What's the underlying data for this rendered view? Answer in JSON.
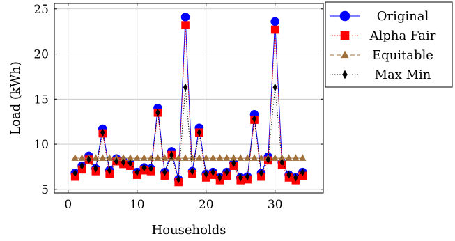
{
  "chart_data": {
    "type": "line",
    "title": "",
    "xlabel": "Households",
    "ylabel": "Load (kWh)",
    "xlim": [
      -2,
      37
    ],
    "ylim": [
      4.6,
      25.6
    ],
    "xticks": [
      0,
      10,
      20,
      30
    ],
    "yticks": [
      5,
      10,
      15,
      20,
      25
    ],
    "grid": true,
    "legend_position": "outside-top-right",
    "x": [
      1,
      2,
      3,
      4,
      5,
      6,
      7,
      8,
      9,
      10,
      11,
      12,
      13,
      14,
      15,
      16,
      17,
      18,
      19,
      20,
      21,
      22,
      23,
      24,
      25,
      26,
      27,
      28,
      29,
      30,
      31,
      32,
      33,
      34
    ],
    "series": [
      {
        "name": "Original",
        "color": "#0000ff",
        "marker": "circle",
        "line": "solid",
        "values": [
          6.8,
          7.6,
          8.7,
          7.3,
          11.7,
          7.1,
          8.4,
          8.1,
          7.9,
          6.9,
          7.4,
          7.3,
          14.0,
          6.9,
          9.2,
          6.1,
          24.1,
          7.0,
          11.8,
          6.7,
          6.9,
          6.3,
          6.9,
          7.9,
          6.3,
          6.4,
          13.3,
          6.8,
          8.6,
          23.6,
          8.0,
          6.6,
          6.3,
          6.9
        ]
      },
      {
        "name": "Alpha Fair",
        "color": "#ff0000",
        "marker": "square",
        "line": "dotted",
        "values": [
          6.4,
          7.2,
          8.3,
          7.0,
          11.2,
          6.7,
          8.1,
          7.8,
          7.6,
          6.6,
          7.1,
          7.0,
          13.5,
          6.5,
          8.8,
          5.8,
          23.2,
          6.7,
          11.3,
          6.3,
          6.6,
          6.0,
          6.5,
          7.6,
          6.0,
          6.1,
          12.7,
          6.4,
          8.2,
          22.7,
          7.7,
          6.3,
          6.0,
          6.5
        ]
      },
      {
        "name": "Equitable",
        "color": "#a0703c",
        "marker": "triangle",
        "line": "dashed",
        "values": [
          8.45,
          8.45,
          8.45,
          8.45,
          8.45,
          8.45,
          8.45,
          8.45,
          8.45,
          8.45,
          8.45,
          8.45,
          8.45,
          8.45,
          8.45,
          8.45,
          8.45,
          8.45,
          8.45,
          8.45,
          8.45,
          8.45,
          8.45,
          8.45,
          8.45,
          8.45,
          8.45,
          8.45,
          8.45,
          8.45,
          8.45,
          8.45,
          8.45,
          8.45
        ]
      },
      {
        "name": "Max Min",
        "color": "#000000",
        "marker": "diamond",
        "line": "dotted",
        "values": [
          6.8,
          7.6,
          8.3,
          7.3,
          11.3,
          7.1,
          8.1,
          8.0,
          7.9,
          6.9,
          7.4,
          7.3,
          13.5,
          6.9,
          8.8,
          6.1,
          16.3,
          7.0,
          11.3,
          6.7,
          6.9,
          6.3,
          6.9,
          7.9,
          6.3,
          6.4,
          12.8,
          6.8,
          8.3,
          16.3,
          8.0,
          6.6,
          6.3,
          6.9
        ]
      }
    ]
  }
}
